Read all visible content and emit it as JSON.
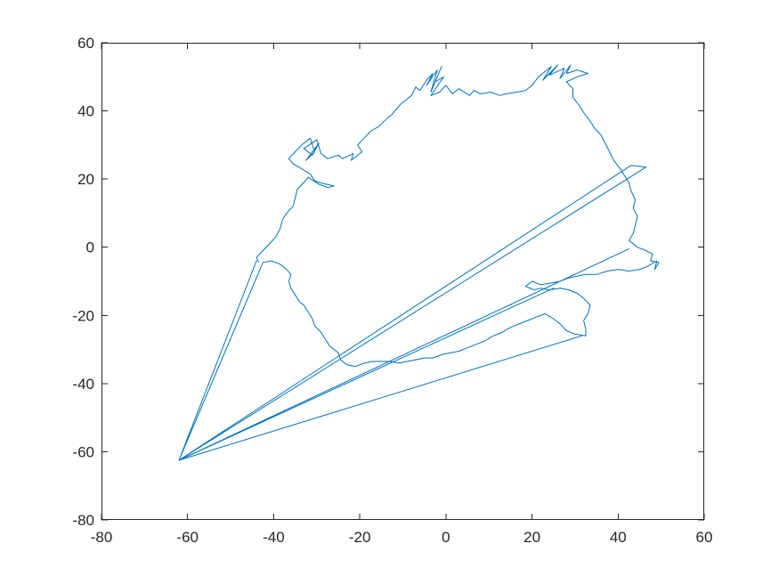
{
  "chart_data": {
    "type": "line",
    "title": "",
    "xlabel": "",
    "ylabel": "",
    "xlim": [
      -80,
      60
    ],
    "ylim": [
      -80,
      60
    ],
    "x_ticks": [
      -80,
      -60,
      -40,
      -20,
      0,
      20,
      40,
      60
    ],
    "y_ticks": [
      -80,
      -60,
      -40,
      -20,
      0,
      20,
      40,
      60
    ],
    "x_tick_labels": [
      "-80",
      "-60",
      "-40",
      "-20",
      "0",
      "20",
      "40",
      "60"
    ],
    "y_tick_labels": [
      "-80",
      "-60",
      "-40",
      "-20",
      "0",
      "20",
      "40",
      "60"
    ],
    "grid": false,
    "box": true,
    "series": [
      {
        "color": "#0072BD",
        "points": [
          [
            -43.5,
            -4.5
          ],
          [
            -44,
            -3
          ],
          [
            -42.5,
            -1
          ],
          [
            -41,
            1
          ],
          [
            -39.5,
            3
          ],
          [
            -38.5,
            5.5
          ],
          [
            -38,
            8
          ],
          [
            -37,
            10
          ],
          [
            -35.5,
            12
          ],
          [
            -35,
            14.5
          ],
          [
            -34.5,
            17
          ],
          [
            -33,
            19
          ],
          [
            -32,
            20.5
          ],
          [
            -29.5,
            18.5
          ],
          [
            -27.5,
            17.5
          ],
          [
            -26,
            18
          ],
          [
            -28.5,
            18.7
          ],
          [
            -30.5,
            19.5
          ],
          [
            -31.5,
            21.5
          ],
          [
            -33.5,
            23
          ],
          [
            -35.5,
            24.5
          ],
          [
            -36.5,
            26
          ],
          [
            -35,
            28
          ],
          [
            -33.5,
            30
          ],
          [
            -31.5,
            32
          ],
          [
            -30.5,
            28
          ],
          [
            -32.5,
            25.5
          ],
          [
            -29.5,
            30.5
          ],
          [
            -31,
            27
          ],
          [
            -33,
            29
          ],
          [
            -30,
            31.5
          ],
          [
            -29,
            27.5
          ],
          [
            -27.5,
            26
          ],
          [
            -25,
            27
          ],
          [
            -24,
            26
          ],
          [
            -21.5,
            27.5
          ],
          [
            -22,
            25.5
          ],
          [
            -19.5,
            28
          ],
          [
            -20.5,
            30
          ],
          [
            -19,
            32
          ],
          [
            -17.5,
            34
          ],
          [
            -15.5,
            35.5
          ],
          [
            -13.5,
            38
          ],
          [
            -12.5,
            39
          ],
          [
            -11.5,
            40.5
          ],
          [
            -10.5,
            42
          ],
          [
            -9.5,
            43
          ],
          [
            -8,
            44.5
          ],
          [
            -7,
            47
          ],
          [
            -6,
            46
          ],
          [
            -4.5,
            49
          ],
          [
            -3,
            51
          ],
          [
            -4.5,
            47.5
          ],
          [
            -2,
            52
          ],
          [
            -3.5,
            45.5
          ],
          [
            -1,
            53
          ],
          [
            -2.5,
            48.5
          ],
          [
            -0.5,
            50
          ],
          [
            -3.5,
            44.5
          ],
          [
            -1.5,
            45.5
          ],
          [
            0,
            47.5
          ],
          [
            1.5,
            45
          ],
          [
            3,
            46.5
          ],
          [
            5.5,
            44.5
          ],
          [
            6.5,
            46
          ],
          [
            8,
            45
          ],
          [
            10.5,
            45.5
          ],
          [
            12.5,
            44.5
          ],
          [
            14,
            45
          ],
          [
            16.5,
            45.5
          ],
          [
            18.5,
            46
          ],
          [
            20,
            47.5
          ],
          [
            21.5,
            50
          ],
          [
            23,
            51.5
          ],
          [
            24.5,
            53
          ],
          [
            22.5,
            49
          ],
          [
            26,
            53.5
          ],
          [
            24,
            50.5
          ],
          [
            27.5,
            52.5
          ],
          [
            26.5,
            49.5
          ],
          [
            29,
            53.5
          ],
          [
            28,
            51
          ],
          [
            30.5,
            52
          ],
          [
            33,
            51
          ],
          [
            30.5,
            50
          ],
          [
            28,
            48.5
          ],
          [
            29.5,
            46.5
          ],
          [
            29.5,
            44
          ],
          [
            31,
            41.5
          ],
          [
            32,
            39.5
          ],
          [
            33.5,
            37
          ],
          [
            34.5,
            35
          ],
          [
            36,
            33
          ],
          [
            37,
            30.5
          ],
          [
            38,
            28
          ],
          [
            39,
            25.5
          ],
          [
            40.5,
            23
          ],
          [
            41.5,
            21
          ],
          [
            42.5,
            19
          ],
          [
            43,
            16.5
          ],
          [
            44,
            14
          ],
          [
            43.5,
            11.5
          ],
          [
            44.5,
            9
          ],
          [
            44,
            6.5
          ],
          [
            43.5,
            4
          ],
          [
            42.5,
            2
          ],
          [
            44.5,
            0
          ],
          [
            46.5,
            -1
          ],
          [
            48,
            -2
          ],
          [
            47.5,
            -4
          ],
          [
            49.5,
            -4.5
          ],
          [
            48.5,
            -6.5
          ],
          [
            49,
            -4
          ],
          [
            47,
            -5.5
          ],
          [
            45,
            -6.5
          ],
          [
            42.5,
            -7
          ],
          [
            40,
            -6.5
          ],
          [
            37.5,
            -7
          ],
          [
            35,
            -8
          ],
          [
            32.5,
            -8
          ],
          [
            30.5,
            -8.5
          ],
          [
            28.5,
            -9
          ],
          [
            26.5,
            -10
          ],
          [
            24.5,
            -10.5
          ],
          [
            22,
            -11
          ],
          [
            20,
            -10
          ],
          [
            18.5,
            -11.5
          ],
          [
            20.5,
            -12.5
          ],
          [
            22,
            -12
          ],
          [
            24,
            -12.5
          ],
          [
            26.5,
            -12
          ],
          [
            28.5,
            -12.5
          ],
          [
            30.5,
            -13.5
          ],
          [
            32,
            -15
          ],
          [
            33.5,
            -17
          ],
          [
            33,
            -19.5
          ],
          [
            32,
            -21.5
          ],
          [
            32.5,
            -24
          ],
          [
            32.5,
            -26
          ],
          [
            30,
            -25.5
          ],
          [
            28,
            -24.5
          ],
          [
            26.5,
            -22.5
          ],
          [
            25,
            -21
          ],
          [
            23,
            -19.5
          ],
          [
            21,
            -20.5
          ],
          [
            19,
            -21.5
          ],
          [
            17,
            -22.5
          ],
          [
            15,
            -23.5
          ],
          [
            13,
            -25
          ],
          [
            11,
            -26
          ],
          [
            9,
            -27.5
          ],
          [
            7,
            -28.5
          ],
          [
            5,
            -29.5
          ],
          [
            3,
            -30.5
          ],
          [
            1,
            -31
          ],
          [
            -1,
            -31.5
          ],
          [
            -3,
            -32.5
          ],
          [
            -5,
            -32.5
          ],
          [
            -7,
            -33
          ],
          [
            -9,
            -33.5
          ],
          [
            -11,
            -34
          ],
          [
            -13,
            -33.5
          ],
          [
            -15,
            -33.5
          ],
          [
            -17,
            -33.5
          ],
          [
            -19,
            -34
          ],
          [
            -21,
            -35
          ],
          [
            -23,
            -34.5
          ],
          [
            -24.5,
            -33
          ],
          [
            -25,
            -31
          ],
          [
            -27,
            -29
          ],
          [
            -28,
            -27
          ],
          [
            -29,
            -25
          ],
          [
            -30.5,
            -23
          ],
          [
            -31,
            -21
          ],
          [
            -32,
            -19
          ],
          [
            -33,
            -17
          ],
          [
            -34,
            -16
          ],
          [
            -35,
            -14
          ],
          [
            -36,
            -12
          ],
          [
            -36.5,
            -10
          ],
          [
            -36,
            -8
          ],
          [
            -37,
            -6.5
          ],
          [
            -38.5,
            -5
          ],
          [
            -40.5,
            -4
          ],
          [
            -42.5,
            -4.5
          ],
          [
            -62,
            -62.5
          ],
          [
            -44,
            -4
          ],
          [
            -62,
            -62.5
          ],
          [
            43,
            24
          ],
          [
            46.5,
            23.5
          ],
          [
            -62,
            -62.5
          ],
          [
            42.5,
            -0.5
          ],
          [
            -62,
            -62.5
          ],
          [
            25,
            -12
          ],
          [
            -62,
            -62.5
          ],
          [
            31.5,
            -26
          ],
          [
            -62,
            -62.5
          ]
        ]
      }
    ]
  }
}
